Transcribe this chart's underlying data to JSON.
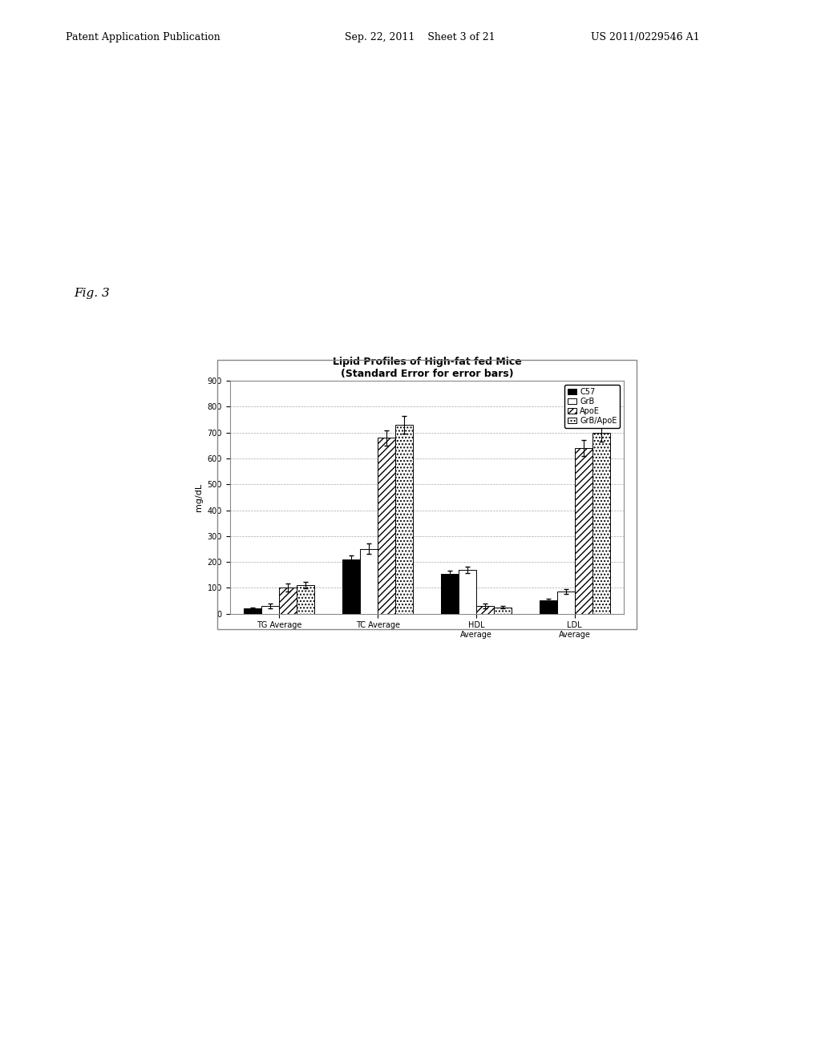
{
  "title_line1": "Lipid Profiles of High-fat fed Mice",
  "title_line2": "(Standard Error for error bars)",
  "ylabel": "mg/dL",
  "categories": [
    "TG Average",
    "TC Average",
    "HDL Average",
    "LDL Average"
  ],
  "category_labels": [
    "TG Average",
    "TC Average",
    "HDL\nAverage",
    "LDL\nAverage"
  ],
  "series_labels": [
    "C57",
    "GrB",
    "ApoE",
    "GrB/ApoE"
  ],
  "values": {
    "TG Average": [
      20,
      30,
      100,
      110
    ],
    "TC Average": [
      210,
      250,
      680,
      730
    ],
    "HDL Average": [
      155,
      170,
      30,
      25
    ],
    "LDL Average": [
      50,
      85,
      640,
      700
    ]
  },
  "errors": {
    "TG Average": [
      5,
      10,
      15,
      12
    ],
    "TC Average": [
      15,
      20,
      30,
      35
    ],
    "HDL Average": [
      10,
      12,
      8,
      5
    ],
    "LDL Average": [
      8,
      10,
      30,
      35
    ]
  },
  "ylim": [
    0,
    900
  ],
  "yticks": [
    0,
    100,
    200,
    300,
    400,
    500,
    600,
    700,
    800,
    900
  ],
  "bar_width": 0.18,
  "figure_bg": "#ffffff",
  "chart_bg": "#ffffff",
  "title_fontsize": 9,
  "axis_fontsize": 8,
  "tick_fontsize": 7,
  "legend_fontsize": 7,
  "grid_color": "#aaaaaa",
  "border_color": "#888888"
}
